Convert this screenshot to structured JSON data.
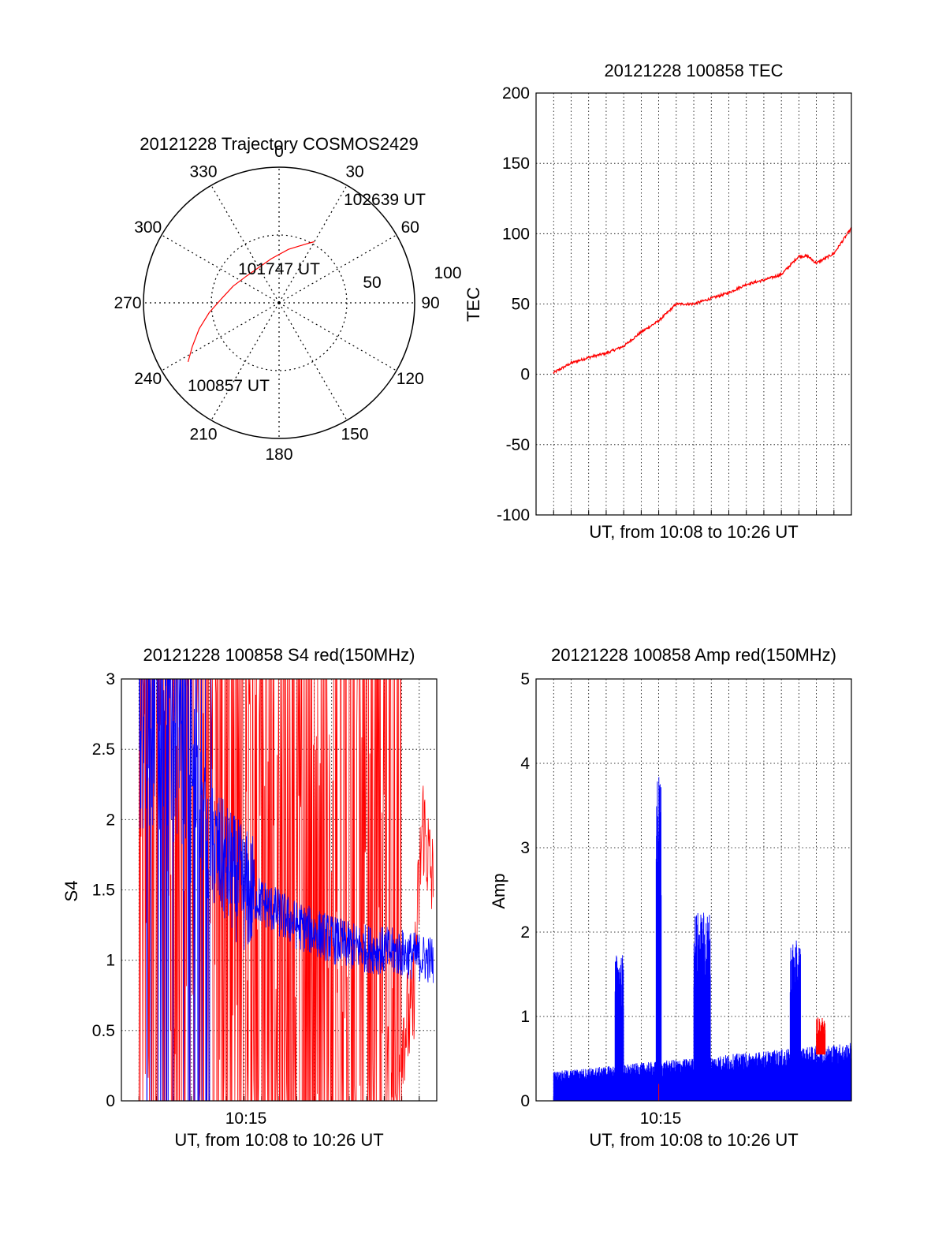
{
  "chart_data": [
    {
      "type": "polar",
      "title": "20121228 Trajectory COSMOS2429",
      "angle_labels": [
        "0",
        "30",
        "60",
        "90",
        "120",
        "150",
        "180",
        "210",
        "240",
        "270",
        "300",
        "330"
      ],
      "radial_labels": [
        "50",
        "100"
      ],
      "r_max": 100,
      "grid": true,
      "series": [
        {
          "color": "#ff0000",
          "azimuth": [
            237,
            243,
            252,
            262,
            275,
            290,
            310,
            330,
            350,
            10,
            25,
            30
          ],
          "radius": [
            80,
            72,
            62,
            52,
            42,
            36,
            31,
            30,
            33,
            40,
            48,
            52
          ]
        }
      ],
      "annotations": [
        {
          "text": "100857 UT",
          "azimuth": 237,
          "radius": 80
        },
        {
          "text": "101747 UT",
          "azimuth": 320,
          "radius": 27
        },
        {
          "text": "102639 UT",
          "azimuth": 30,
          "radius": 52
        }
      ]
    },
    {
      "type": "line",
      "title": "20121228 100858 TEC",
      "xlabel": "UT, from 10:08 to 10:26 UT",
      "ylabel": "TEC",
      "xlim": [
        10.1333,
        10.4333
      ],
      "ylim": [
        -100,
        200
      ],
      "yticks": [
        "-100",
        "-50",
        "0",
        "50",
        "100",
        "150",
        "200"
      ],
      "grid": true,
      "series": [
        {
          "color": "#ff0000",
          "x": [
            10.1497,
            10.1667,
            10.1833,
            10.2,
            10.2167,
            10.2333,
            10.25,
            10.2667,
            10.2833,
            10.3,
            10.3167,
            10.3333,
            10.35,
            10.3667,
            10.3833,
            10.3917,
            10.4,
            10.4167,
            10.4333
          ],
          "y": [
            1,
            8,
            12,
            15,
            20,
            30,
            38,
            50,
            50,
            54,
            58,
            64,
            67,
            71,
            84,
            84,
            79,
            86,
            104
          ]
        }
      ]
    },
    {
      "type": "line",
      "title": "20121228 100858 S4 red(150MHz)",
      "xlabel": "UT, from 10:08 to 10:26 UT",
      "ylabel": "S4",
      "xlim": [
        10.1333,
        10.4333
      ],
      "ylim": [
        0,
        3
      ],
      "yticks": [
        "0",
        "0.5",
        "1",
        "1.5",
        "2",
        "2.5",
        "3"
      ],
      "xtick_labels": [
        "10:15"
      ],
      "grid": true,
      "series": [
        {
          "color": "#ff0000",
          "x": [
            10.15,
            10.2,
            10.25,
            10.3,
            10.35,
            10.38,
            10.4,
            10.41,
            10.42,
            10.43
          ],
          "y": [
            3,
            3,
            3,
            3,
            2.8,
            2.6,
            0.5,
            0.6,
            2,
            1.5
          ]
        },
        {
          "color": "#0000ff",
          "x": [
            10.15,
            10.18,
            10.2,
            10.21,
            10.22,
            10.25,
            10.3,
            10.35,
            10.4,
            10.43
          ],
          "y": [
            3,
            3,
            2.6,
            2,
            1.8,
            1.5,
            1.25,
            1.1,
            1.05,
            1.0
          ]
        }
      ]
    },
    {
      "type": "line",
      "title": "20121228 100858 Amp red(150MHz)",
      "xlabel": "UT, from 10:08 to 10:26 UT",
      "ylabel": "Amp",
      "xlim": [
        10.1333,
        10.4333
      ],
      "ylim": [
        0,
        5
      ],
      "yticks": [
        "0",
        "1",
        "2",
        "3",
        "4",
        "5"
      ],
      "xtick_labels": [
        "10:15"
      ],
      "grid": true,
      "series": [
        {
          "color": "#0000ff",
          "x": [
            10.15,
            10.2167,
            10.2333,
            10.25,
            10.2833,
            10.2917,
            10.3,
            10.3333,
            10.3667,
            10.3833,
            10.4333
          ],
          "y": [
            0.45,
            1.7,
            0.5,
            4.0,
            0.5,
            2.4,
            0.55,
            0.75,
            2.2,
            0.7,
            0.8
          ]
        },
        {
          "color": "#ff0000",
          "x": [
            10.25,
            10.4,
            10.4083
          ],
          "y": [
            0.2,
            1.0,
            0.8
          ]
        }
      ]
    }
  ]
}
